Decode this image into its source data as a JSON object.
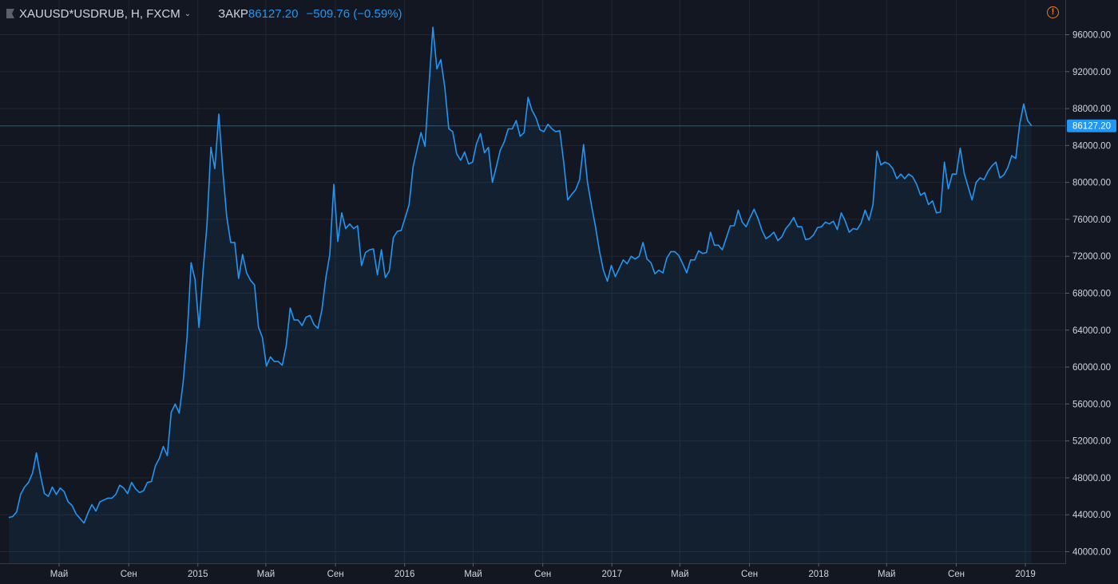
{
  "legend": {
    "symbol": "XAUUSD*USDRUB, Н, FXCM",
    "close_label": "ЗАКР",
    "close_value": "86127.20",
    "change": "−509.76 (−0.59%)"
  },
  "colors": {
    "background": "#131722",
    "line": "#2196f3",
    "grid": "#2a2e39",
    "text": "#d1d4dc",
    "warning": "#f57c00"
  },
  "icons": [
    "flag-icon",
    "chevron-down-icon",
    "warning-icon"
  ],
  "chart_data": {
    "type": "area",
    "title": "XAUUSD*USDRUB, Н, FXCM",
    "x_range": [
      "2014-02-01",
      "2019-02-15"
    ],
    "ylim": [
      39000,
      97500
    ],
    "y_ticks": [
      "40000.00",
      "44000.00",
      "48000.00",
      "52000.00",
      "56000.00",
      "60000.00",
      "64000.00",
      "68000.00",
      "72000.00",
      "76000.00",
      "80000.00",
      "84000.00",
      "88000.00",
      "92000.00",
      "96000.00"
    ],
    "x_ticks": [
      {
        "label": "Май",
        "date": "2014-05-01"
      },
      {
        "label": "Сен",
        "date": "2014-09-01"
      },
      {
        "label": "2015",
        "date": "2015-01-01"
      },
      {
        "label": "Май",
        "date": "2015-05-01"
      },
      {
        "label": "Сен",
        "date": "2015-09-01"
      },
      {
        "label": "2016",
        "date": "2016-01-01"
      },
      {
        "label": "Май",
        "date": "2016-05-01"
      },
      {
        "label": "Сен",
        "date": "2016-09-01"
      },
      {
        "label": "2017",
        "date": "2017-01-01"
      },
      {
        "label": "Май",
        "date": "2017-05-01"
      },
      {
        "label": "Сен",
        "date": "2017-09-01"
      },
      {
        "label": "2018",
        "date": "2018-01-01"
      },
      {
        "label": "Май",
        "date": "2018-05-01"
      },
      {
        "label": "Сен",
        "date": "2018-09-01"
      },
      {
        "label": "2019",
        "date": "2019-01-01"
      }
    ],
    "last_price_label": "86127.20",
    "grid": true,
    "series": [
      {
        "points": [
          [
            "2014-02-01",
            43700
          ],
          [
            "2014-02-08",
            43800
          ],
          [
            "2014-02-15",
            44300
          ],
          [
            "2014-02-22",
            46200
          ],
          [
            "2014-03-01",
            47000
          ],
          [
            "2014-03-08",
            47500
          ],
          [
            "2014-03-15",
            48500
          ],
          [
            "2014-03-22",
            50700
          ],
          [
            "2014-03-29",
            48300
          ],
          [
            "2014-04-05",
            46300
          ],
          [
            "2014-04-12",
            46000
          ],
          [
            "2014-04-19",
            47000
          ],
          [
            "2014-04-26",
            46200
          ],
          [
            "2014-05-03",
            46900
          ],
          [
            "2014-05-10",
            46500
          ],
          [
            "2014-05-17",
            45400
          ],
          [
            "2014-05-24",
            45000
          ],
          [
            "2014-05-31",
            44100
          ],
          [
            "2014-06-07",
            43600
          ],
          [
            "2014-06-14",
            43100
          ],
          [
            "2014-06-21",
            44200
          ],
          [
            "2014-06-28",
            45100
          ],
          [
            "2014-07-05",
            44400
          ],
          [
            "2014-07-12",
            45400
          ],
          [
            "2014-07-19",
            45600
          ],
          [
            "2014-07-26",
            45800
          ],
          [
            "2014-08-02",
            45800
          ],
          [
            "2014-08-09",
            46200
          ],
          [
            "2014-08-16",
            47200
          ],
          [
            "2014-08-23",
            46900
          ],
          [
            "2014-08-30",
            46300
          ],
          [
            "2014-09-06",
            47500
          ],
          [
            "2014-09-13",
            46800
          ],
          [
            "2014-09-20",
            46400
          ],
          [
            "2014-09-27",
            46600
          ],
          [
            "2014-10-04",
            47500
          ],
          [
            "2014-10-11",
            47600
          ],
          [
            "2014-10-18",
            49300
          ],
          [
            "2014-10-25",
            50100
          ],
          [
            "2014-11-01",
            51400
          ],
          [
            "2014-11-08",
            50400
          ],
          [
            "2014-11-15",
            55100
          ],
          [
            "2014-11-22",
            56000
          ],
          [
            "2014-11-29",
            55000
          ],
          [
            "2014-12-06",
            58300
          ],
          [
            "2014-12-13",
            63300
          ],
          [
            "2014-12-20",
            71300
          ],
          [
            "2014-12-27",
            69500
          ],
          [
            "2015-01-03",
            64300
          ],
          [
            "2015-01-10",
            70300
          ],
          [
            "2015-01-17",
            75300
          ],
          [
            "2015-01-24",
            83800
          ],
          [
            "2015-01-31",
            81500
          ],
          [
            "2015-02-07",
            87400
          ],
          [
            "2015-02-14",
            81300
          ],
          [
            "2015-02-21",
            76300
          ],
          [
            "2015-02-28",
            73500
          ],
          [
            "2015-03-07",
            73500
          ],
          [
            "2015-03-14",
            69600
          ],
          [
            "2015-03-21",
            72200
          ],
          [
            "2015-03-28",
            70200
          ],
          [
            "2015-04-04",
            69400
          ],
          [
            "2015-04-11",
            68900
          ],
          [
            "2015-04-18",
            64300
          ],
          [
            "2015-04-25",
            63200
          ],
          [
            "2015-05-02",
            60100
          ],
          [
            "2015-05-09",
            61100
          ],
          [
            "2015-05-16",
            60600
          ],
          [
            "2015-05-23",
            60600
          ],
          [
            "2015-05-30",
            60200
          ],
          [
            "2015-06-06",
            62300
          ],
          [
            "2015-06-13",
            66400
          ],
          [
            "2015-06-20",
            65100
          ],
          [
            "2015-06-27",
            65100
          ],
          [
            "2015-07-04",
            64500
          ],
          [
            "2015-07-11",
            65400
          ],
          [
            "2015-07-18",
            65600
          ],
          [
            "2015-07-25",
            64600
          ],
          [
            "2015-08-01",
            64200
          ],
          [
            "2015-08-08",
            66200
          ],
          [
            "2015-08-15",
            69700
          ],
          [
            "2015-08-22",
            72200
          ],
          [
            "2015-08-29",
            79800
          ],
          [
            "2015-09-05",
            73600
          ],
          [
            "2015-09-12",
            76700
          ],
          [
            "2015-09-19",
            75000
          ],
          [
            "2015-09-26",
            75500
          ],
          [
            "2015-10-03",
            75000
          ],
          [
            "2015-10-10",
            75300
          ],
          [
            "2015-10-17",
            71000
          ],
          [
            "2015-10-24",
            72400
          ],
          [
            "2015-10-31",
            72700
          ],
          [
            "2015-11-07",
            72800
          ],
          [
            "2015-11-14",
            70000
          ],
          [
            "2015-11-21",
            72700
          ],
          [
            "2015-11-28",
            69700
          ],
          [
            "2015-12-05",
            70400
          ],
          [
            "2015-12-12",
            74000
          ],
          [
            "2015-12-19",
            74700
          ],
          [
            "2015-12-26",
            74800
          ],
          [
            "2016-01-02",
            76200
          ],
          [
            "2016-01-09",
            77600
          ],
          [
            "2016-01-16",
            81700
          ],
          [
            "2016-01-23",
            83600
          ],
          [
            "2016-01-30",
            85400
          ],
          [
            "2016-02-06",
            83900
          ],
          [
            "2016-02-13",
            90400
          ],
          [
            "2016-02-20",
            96800
          ],
          [
            "2016-02-27",
            92300
          ],
          [
            "2016-03-05",
            93300
          ],
          [
            "2016-03-12",
            90300
          ],
          [
            "2016-03-19",
            85800
          ],
          [
            "2016-03-26",
            85500
          ],
          [
            "2016-04-02",
            83100
          ],
          [
            "2016-04-09",
            82400
          ],
          [
            "2016-04-16",
            83300
          ],
          [
            "2016-04-23",
            82000
          ],
          [
            "2016-04-30",
            82200
          ],
          [
            "2016-05-07",
            84200
          ],
          [
            "2016-05-14",
            85300
          ],
          [
            "2016-05-21",
            83200
          ],
          [
            "2016-05-28",
            83800
          ],
          [
            "2016-06-04",
            80000
          ],
          [
            "2016-06-11",
            81700
          ],
          [
            "2016-06-18",
            83500
          ],
          [
            "2016-06-25",
            84400
          ],
          [
            "2016-07-02",
            85800
          ],
          [
            "2016-07-09",
            85800
          ],
          [
            "2016-07-16",
            86700
          ],
          [
            "2016-07-23",
            85000
          ],
          [
            "2016-07-30",
            85400
          ],
          [
            "2016-08-06",
            89200
          ],
          [
            "2016-08-13",
            87800
          ],
          [
            "2016-08-20",
            87000
          ],
          [
            "2016-08-27",
            85700
          ],
          [
            "2016-09-03",
            85500
          ],
          [
            "2016-09-10",
            86300
          ],
          [
            "2016-09-17",
            85800
          ],
          [
            "2016-09-24",
            85500
          ],
          [
            "2016-10-01",
            85600
          ],
          [
            "2016-10-08",
            82100
          ],
          [
            "2016-10-15",
            78100
          ],
          [
            "2016-10-22",
            78700
          ],
          [
            "2016-10-29",
            79200
          ],
          [
            "2016-11-05",
            80300
          ],
          [
            "2016-11-12",
            84100
          ],
          [
            "2016-11-19",
            80000
          ],
          [
            "2016-11-26",
            77500
          ],
          [
            "2016-12-03",
            75200
          ],
          [
            "2016-12-10",
            72600
          ],
          [
            "2016-12-17",
            70500
          ],
          [
            "2016-12-24",
            69300
          ],
          [
            "2016-12-31",
            71000
          ],
          [
            "2017-01-07",
            69800
          ],
          [
            "2017-01-14",
            70700
          ],
          [
            "2017-01-21",
            71600
          ],
          [
            "2017-01-28",
            71200
          ],
          [
            "2017-02-04",
            72000
          ],
          [
            "2017-02-11",
            71700
          ],
          [
            "2017-02-18",
            72000
          ],
          [
            "2017-02-25",
            73500
          ],
          [
            "2017-03-04",
            71700
          ],
          [
            "2017-03-11",
            71300
          ],
          [
            "2017-03-18",
            70100
          ],
          [
            "2017-03-25",
            70500
          ],
          [
            "2017-04-01",
            70200
          ],
          [
            "2017-04-08",
            71800
          ],
          [
            "2017-04-15",
            72500
          ],
          [
            "2017-04-22",
            72500
          ],
          [
            "2017-04-29",
            72100
          ],
          [
            "2017-05-06",
            71200
          ],
          [
            "2017-05-13",
            70200
          ],
          [
            "2017-05-20",
            71600
          ],
          [
            "2017-05-27",
            71600
          ],
          [
            "2017-06-03",
            72600
          ],
          [
            "2017-06-10",
            72300
          ],
          [
            "2017-06-17",
            72400
          ],
          [
            "2017-06-24",
            74600
          ],
          [
            "2017-07-01",
            73200
          ],
          [
            "2017-07-08",
            73200
          ],
          [
            "2017-07-15",
            72700
          ],
          [
            "2017-07-22",
            74000
          ],
          [
            "2017-07-29",
            75300
          ],
          [
            "2017-08-05",
            75300
          ],
          [
            "2017-08-12",
            77000
          ],
          [
            "2017-08-19",
            75700
          ],
          [
            "2017-08-26",
            75200
          ],
          [
            "2017-09-02",
            76200
          ],
          [
            "2017-09-09",
            77100
          ],
          [
            "2017-09-16",
            76100
          ],
          [
            "2017-09-23",
            74800
          ],
          [
            "2017-09-30",
            73900
          ],
          [
            "2017-10-07",
            74200
          ],
          [
            "2017-10-14",
            74600
          ],
          [
            "2017-10-21",
            73700
          ],
          [
            "2017-10-28",
            74100
          ],
          [
            "2017-11-04",
            75000
          ],
          [
            "2017-11-11",
            75500
          ],
          [
            "2017-11-18",
            76200
          ],
          [
            "2017-11-25",
            75200
          ],
          [
            "2017-12-02",
            75200
          ],
          [
            "2017-12-09",
            73800
          ],
          [
            "2017-12-16",
            73900
          ],
          [
            "2017-12-23",
            74300
          ],
          [
            "2017-12-30",
            75100
          ],
          [
            "2018-01-06",
            75200
          ],
          [
            "2018-01-13",
            75700
          ],
          [
            "2018-01-20",
            75500
          ],
          [
            "2018-01-27",
            75800
          ],
          [
            "2018-02-03",
            74900
          ],
          [
            "2018-02-10",
            76700
          ],
          [
            "2018-02-17",
            75800
          ],
          [
            "2018-02-24",
            74600
          ],
          [
            "2018-03-03",
            75000
          ],
          [
            "2018-03-10",
            74900
          ],
          [
            "2018-03-17",
            75600
          ],
          [
            "2018-03-24",
            77000
          ],
          [
            "2018-03-31",
            75900
          ],
          [
            "2018-04-07",
            77600
          ],
          [
            "2018-04-14",
            83400
          ],
          [
            "2018-04-21",
            81900
          ],
          [
            "2018-04-28",
            82200
          ],
          [
            "2018-05-05",
            82000
          ],
          [
            "2018-05-12",
            81500
          ],
          [
            "2018-05-19",
            80400
          ],
          [
            "2018-05-26",
            80900
          ],
          [
            "2018-06-02",
            80400
          ],
          [
            "2018-06-09",
            80900
          ],
          [
            "2018-06-16",
            80600
          ],
          [
            "2018-06-23",
            79800
          ],
          [
            "2018-06-30",
            78600
          ],
          [
            "2018-07-07",
            78900
          ],
          [
            "2018-07-14",
            77600
          ],
          [
            "2018-07-21",
            78000
          ],
          [
            "2018-07-28",
            76700
          ],
          [
            "2018-08-04",
            76800
          ],
          [
            "2018-08-11",
            82200
          ],
          [
            "2018-08-18",
            79300
          ],
          [
            "2018-08-25",
            80900
          ],
          [
            "2018-09-01",
            80900
          ],
          [
            "2018-09-08",
            83700
          ],
          [
            "2018-09-15",
            81000
          ],
          [
            "2018-09-22",
            79500
          ],
          [
            "2018-09-29",
            78100
          ],
          [
            "2018-10-06",
            80000
          ],
          [
            "2018-10-13",
            80500
          ],
          [
            "2018-10-20",
            80300
          ],
          [
            "2018-10-27",
            81200
          ],
          [
            "2018-11-03",
            81800
          ],
          [
            "2018-11-10",
            82200
          ],
          [
            "2018-11-17",
            80500
          ],
          [
            "2018-11-24",
            80800
          ],
          [
            "2018-12-01",
            81600
          ],
          [
            "2018-12-08",
            82900
          ],
          [
            "2018-12-15",
            82600
          ],
          [
            "2018-12-22",
            86300
          ],
          [
            "2018-12-29",
            88500
          ],
          [
            "2019-01-05",
            86700
          ],
          [
            "2019-01-12",
            86127.2
          ]
        ]
      }
    ]
  }
}
